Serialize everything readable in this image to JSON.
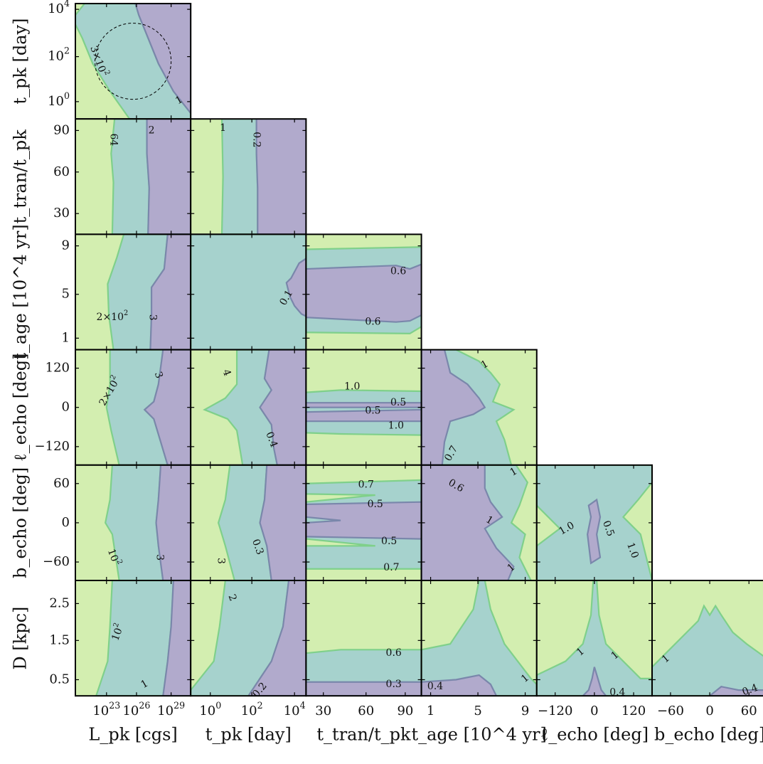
{
  "chart_data": {
    "type": "contour",
    "layout": "corner-plot",
    "colors": {
      "low": "#d3eeb0",
      "mid": "#a6d2cd",
      "high": "#b1aacc",
      "line_low": "#7fd08a",
      "line_high": "#7a87ab"
    },
    "params": [
      {
        "id": "Lpk",
        "label": "L_pk [cgs]",
        "ticks": [
          "10^23",
          "10^26",
          "10^29"
        ],
        "tickpos": [
          0.27,
          0.53,
          0.83
        ]
      },
      {
        "id": "tpk",
        "label": "t_pk [day]",
        "ticks": [
          "10^0",
          "10^2",
          "10^4"
        ],
        "tickpos": [
          0.17,
          0.53,
          0.9
        ]
      },
      {
        "id": "ttran",
        "label": "t_tran/t_pk",
        "ticks": [
          "30",
          "60",
          "90"
        ],
        "tickpos": [
          0.15,
          0.52,
          0.86
        ]
      },
      {
        "id": "tage",
        "label": "t_age [10^4 yr]",
        "ticks": [
          "1",
          "5",
          "9"
        ],
        "tickpos": [
          0.08,
          0.49,
          0.9
        ]
      },
      {
        "id": "lecho",
        "label": "ℓ_echo [deg]",
        "ticks": [
          "−120",
          "0",
          "120"
        ],
        "tickpos": [
          0.16,
          0.5,
          0.84
        ]
      },
      {
        "id": "becho",
        "label": "b_echo [deg]",
        "ticks": [
          "−60",
          "0",
          "60"
        ],
        "tickpos": [
          0.16,
          0.5,
          0.84
        ]
      }
    ],
    "row_params": [
      {
        "id": "tpk",
        "label": "t_pk [day]",
        "ticks": [
          "10^4",
          "10^2",
          "10^0"
        ],
        "tickpos": [
          0.05,
          0.46,
          0.85
        ]
      },
      {
        "id": "ttran",
        "label": "t_tran/t_pk",
        "ticks": [
          "90",
          "60",
          "30"
        ],
        "tickpos": [
          0.1,
          0.46,
          0.82
        ]
      },
      {
        "id": "tage",
        "label": "t_age [10^4 yr]",
        "ticks": [
          "9",
          "5",
          "1"
        ],
        "tickpos": [
          0.1,
          0.52,
          0.9
        ]
      },
      {
        "id": "lecho",
        "label": "ℓ_echo [deg]",
        "ticks": [
          "120",
          "0",
          "−120"
        ],
        "tickpos": [
          0.16,
          0.5,
          0.84
        ]
      },
      {
        "id": "becho",
        "label": "b_echo [deg]",
        "ticks": [
          "60",
          "0",
          "−60"
        ],
        "tickpos": [
          0.16,
          0.5,
          0.84
        ]
      },
      {
        "id": "D",
        "label": "D [kpc]",
        "ticks": [
          "2.5",
          "1.5",
          "0.5"
        ],
        "tickpos": [
          0.2,
          0.52,
          0.86
        ]
      }
    ],
    "panels": [
      {
        "row": 0,
        "col": 0,
        "labels": [
          "3×10^2",
          "1"
        ]
      },
      {
        "row": 1,
        "col": 0,
        "labels": [
          "64",
          "2"
        ]
      },
      {
        "row": 1,
        "col": 1,
        "labels": [
          "1",
          "0.2"
        ]
      },
      {
        "row": 2,
        "col": 0,
        "labels": [
          "2×10^2",
          "3"
        ]
      },
      {
        "row": 2,
        "col": 1,
        "labels": [
          "0.1"
        ]
      },
      {
        "row": 2,
        "col": 2,
        "labels": [
          "0.6",
          "0.6"
        ]
      },
      {
        "row": 3,
        "col": 0,
        "labels": [
          "2×10^2",
          "3"
        ]
      },
      {
        "row": 3,
        "col": 1,
        "labels": [
          "4",
          "0.4"
        ]
      },
      {
        "row": 3,
        "col": 2,
        "labels": [
          "1.0",
          "0.5",
          "0.5",
          "1.0"
        ]
      },
      {
        "row": 3,
        "col": 3,
        "labels": [
          "1",
          "0.7"
        ]
      },
      {
        "row": 4,
        "col": 0,
        "labels": [
          "10^2",
          "3"
        ]
      },
      {
        "row": 4,
        "col": 1,
        "labels": [
          "3",
          "0.3"
        ]
      },
      {
        "row": 4,
        "col": 2,
        "labels": [
          "0.7",
          "0.5",
          "0.5",
          "0.7"
        ]
      },
      {
        "row": 4,
        "col": 3,
        "labels": [
          "0.6",
          "1",
          "1",
          "1"
        ]
      },
      {
        "row": 4,
        "col": 4,
        "labels": [
          "1.0",
          "0.5",
          "1.0"
        ]
      },
      {
        "row": 5,
        "col": 0,
        "labels": [
          "10^2",
          "1"
        ]
      },
      {
        "row": 5,
        "col": 1,
        "labels": [
          "2",
          "0.2"
        ]
      },
      {
        "row": 5,
        "col": 2,
        "labels": [
          "0.6",
          "0.3"
        ]
      },
      {
        "row": 5,
        "col": 3,
        "labels": [
          "0.4",
          "1"
        ]
      },
      {
        "row": 5,
        "col": 4,
        "labels": [
          "1",
          "1",
          "0.4"
        ]
      },
      {
        "row": 5,
        "col": 5,
        "labels": [
          "1",
          "0.4"
        ]
      }
    ]
  }
}
